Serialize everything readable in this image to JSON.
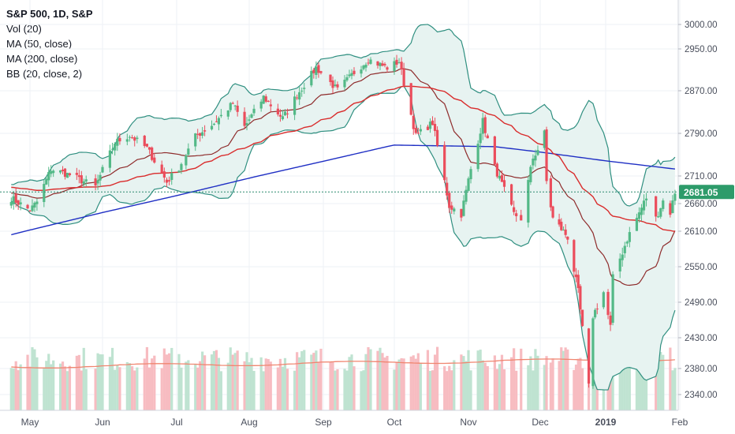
{
  "legend": {
    "symbol_line": "S&P 500, 1D, S&P",
    "volume": "Vol (20)",
    "ma50": "MA (50, close)",
    "ma200": "MA (200, close)",
    "bb": "BB (20, close, 2)"
  },
  "colors": {
    "up": "#53b987",
    "down": "#eb4d5c",
    "up_volume": "#bfe3d1",
    "down_volume": "#f7bcc1",
    "ma50": "#d92c2c",
    "ma200": "#1f2fc4",
    "bb_bands": "#2f8f80",
    "bb_basis": "#8e2b2b",
    "bb_fill": "#e7f3f1",
    "vol_ma": "#f0856f",
    "last_price_line": "#2d8a6f",
    "last_price_bg": "#2d9b6a",
    "grid": "#eef1f5",
    "axis_text": "#4a4f5c"
  },
  "chart_data": {
    "type": "candlestick",
    "title": "S&P 500, 1D, S&P",
    "xlabel": "",
    "ylabel": "",
    "ylim": [
      2320,
      3040
    ],
    "y_ticks": [
      "3000.00",
      "2950.00",
      "2870.00",
      "2790.00",
      "2710.00",
      "2660.00",
      "2610.00",
      "2550.00",
      "2490.00",
      "2430.00",
      "2380.00",
      "2340.00"
    ],
    "x_ticks": [
      "May",
      "Jun",
      "Jul",
      "Aug",
      "Sep",
      "Oct",
      "Nov",
      "Dec",
      "2019",
      "Feb"
    ],
    "last_price": "2681.05",
    "grid": true,
    "legend_position": "top-left",
    "anchors": [
      [
        "2018-04-23",
        2670
      ],
      [
        "2018-05-01",
        2648
      ],
      [
        "2018-05-04",
        2663
      ],
      [
        "2018-05-10",
        2723
      ],
      [
        "2018-05-18",
        2712
      ],
      [
        "2018-05-29",
        2690
      ],
      [
        "2018-06-06",
        2773
      ],
      [
        "2018-06-12",
        2786
      ],
      [
        "2018-06-19",
        2762
      ],
      [
        "2018-06-27",
        2699
      ],
      [
        "2018-07-02",
        2726
      ],
      [
        "2018-07-09",
        2784
      ],
      [
        "2018-07-17",
        2809
      ],
      [
        "2018-07-25",
        2846
      ],
      [
        "2018-07-30",
        2802
      ],
      [
        "2018-08-07",
        2858
      ],
      [
        "2018-08-15",
        2818
      ],
      [
        "2018-08-21",
        2862
      ],
      [
        "2018-08-29",
        2914
      ],
      [
        "2018-09-07",
        2871
      ],
      [
        "2018-09-14",
        2905
      ],
      [
        "2018-09-20",
        2930
      ],
      [
        "2018-09-28",
        2914
      ],
      [
        "2018-10-03",
        2926
      ],
      [
        "2018-10-05",
        2885
      ],
      [
        "2018-10-10",
        2785
      ],
      [
        "2018-10-17",
        2810
      ],
      [
        "2018-10-24",
        2656
      ],
      [
        "2018-10-29",
        2641
      ],
      [
        "2018-11-02",
        2723
      ],
      [
        "2018-11-07",
        2813
      ],
      [
        "2018-11-12",
        2726
      ],
      [
        "2018-11-20",
        2641
      ],
      [
        "2018-11-23",
        2633
      ],
      [
        "2018-11-28",
        2744
      ],
      [
        "2018-11-30",
        2760
      ],
      [
        "2018-12-03",
        2790
      ],
      [
        "2018-12-04",
        2700
      ],
      [
        "2018-12-07",
        2633
      ],
      [
        "2018-12-14",
        2600
      ],
      [
        "2018-12-19",
        2507
      ],
      [
        "2018-12-24",
        2351
      ],
      [
        "2018-12-26",
        2467
      ],
      [
        "2018-12-31",
        2507
      ],
      [
        "2019-01-03",
        2448
      ],
      [
        "2019-01-04",
        2531
      ],
      [
        "2019-01-10",
        2597
      ],
      [
        "2019-01-18",
        2671
      ],
      [
        "2019-01-22",
        2633
      ],
      [
        "2019-01-25",
        2665
      ],
      [
        "2019-01-28",
        2644
      ],
      [
        "2019-01-30",
        2681
      ]
    ]
  }
}
